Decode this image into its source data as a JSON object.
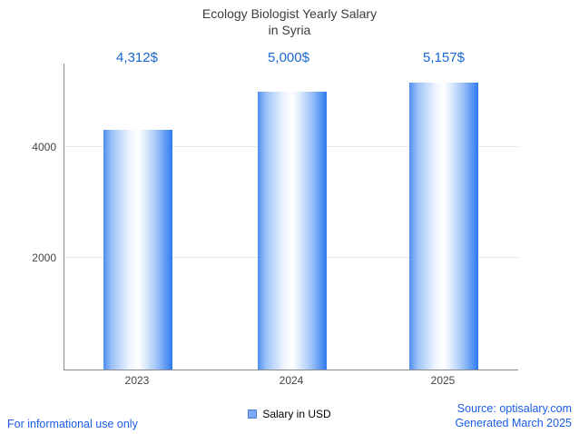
{
  "title": {
    "line1": "Ecology Biologist Yearly Salary",
    "line2": "in Syria"
  },
  "chart_data": {
    "type": "bar",
    "title": "Ecology Biologist Yearly Salary in Syria",
    "categories": [
      "2023",
      "2024",
      "2025"
    ],
    "values": [
      4312,
      5000,
      5157
    ],
    "value_labels": [
      "4,312$",
      "5,000$",
      "5,157$"
    ],
    "series": [
      {
        "name": "Salary in USD",
        "values": [
          4312,
          5000,
          5157
        ]
      }
    ],
    "xlabel": "",
    "ylabel": "",
    "ylim": [
      0,
      5500
    ],
    "yticks": [
      2000,
      4000
    ],
    "grid": true,
    "legend_position": "bottom",
    "bar_gradient": [
      "#4f8ef2",
      "#ffffff",
      "#2e7af0"
    ]
  },
  "legend": {
    "label": "Salary in USD",
    "marker_color": "#7fa9f2"
  },
  "footer": {
    "left": "For informational use only",
    "source": "Source: optisalary.com",
    "generated": "Generated March 2025"
  },
  "colors": {
    "accent_blue": "#1967d2",
    "footer_blue": "#1a5ce8",
    "title_text": "#3c3c3c",
    "axis": "#8a8a8a",
    "gridline": "#e4e4e4"
  }
}
